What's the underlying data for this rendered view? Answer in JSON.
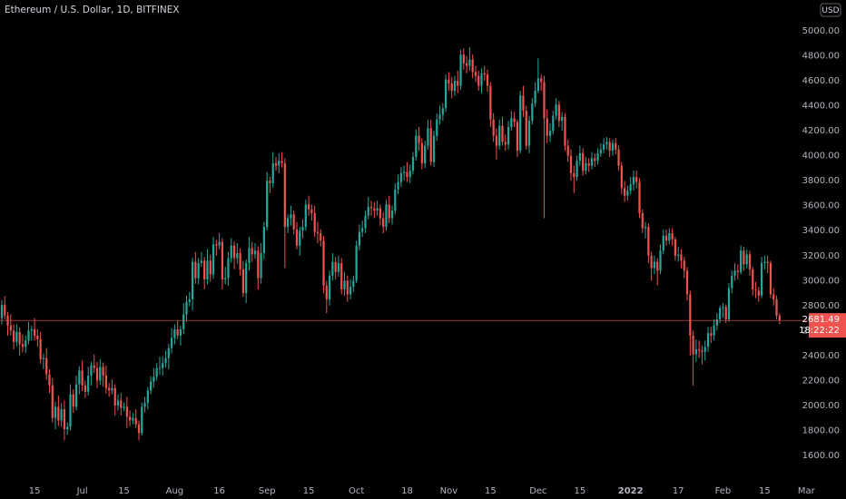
{
  "chart_data": {
    "type": "candlestick",
    "title": "Ethereum / U.S. Dollar, 1D, BITFINEX",
    "currency": "USD",
    "up_color": "#26a69a",
    "down_color": "#ef5350",
    "last_price": 2681.49,
    "countdown": "18:22:22",
    "ylim": [
      1433,
      5247
    ],
    "yticks": [
      {
        "value": 1600,
        "label": "1600.00"
      },
      {
        "value": 1800,
        "label": "1800.00"
      },
      {
        "value": 2000,
        "label": "2000.00"
      },
      {
        "value": 2200,
        "label": "2200.00"
      },
      {
        "value": 2400,
        "label": "2400.00"
      },
      {
        "value": 2600,
        "label": "2600.00"
      },
      {
        "value": 2800,
        "label": "2800.00"
      },
      {
        "value": 3000,
        "label": "3000.00"
      },
      {
        "value": 3200,
        "label": "3200.00"
      },
      {
        "value": 3400,
        "label": "3400.00"
      },
      {
        "value": 3600,
        "label": "3600.00"
      },
      {
        "value": 3800,
        "label": "3800.00"
      },
      {
        "value": 4000,
        "label": "4000.00"
      },
      {
        "value": 4200,
        "label": "4200.00"
      },
      {
        "value": 4400,
        "label": "4400.00"
      },
      {
        "value": 4600,
        "label": "4600.00"
      },
      {
        "value": 4800,
        "label": "4800.00"
      },
      {
        "value": 5000,
        "label": "5000.00"
      }
    ],
    "xlim": [
      -0.6,
      270.5
    ],
    "xticks": [
      {
        "value": 11,
        "label": "15"
      },
      {
        "value": 27,
        "label": "Jul"
      },
      {
        "value": 41,
        "label": "15"
      },
      {
        "value": 58,
        "label": "Aug"
      },
      {
        "value": 73,
        "label": "16"
      },
      {
        "value": 89,
        "label": "Sep"
      },
      {
        "value": 103,
        "label": "15"
      },
      {
        "value": 119,
        "label": "Oct"
      },
      {
        "value": 136,
        "label": "18"
      },
      {
        "value": 150,
        "label": "Nov"
      },
      {
        "value": 164,
        "label": "15"
      },
      {
        "value": 180,
        "label": "Dec"
      },
      {
        "value": 194,
        "label": "15"
      },
      {
        "value": 211,
        "label": "2022"
      },
      {
        "value": 227,
        "label": "17"
      },
      {
        "value": 242,
        "label": "Feb"
      },
      {
        "value": 256,
        "label": "15"
      },
      {
        "value": 270,
        "label": "Mar"
      }
    ],
    "open": [
      2700,
      2805,
      2720,
      2640,
      2600,
      2510,
      2590,
      2490,
      2470,
      2520,
      2600,
      2610,
      2560,
      2530,
      2370,
      2380,
      2250,
      2160,
      1900,
      1990,
      1880,
      1970,
      1810,
      1830,
      2090,
      1990,
      2170,
      2280,
      2160,
      2110,
      2240,
      2320,
      2300,
      2200,
      2310,
      2240,
      2140,
      2120,
      2140,
      2000,
      2040,
      1980,
      1990,
      1910,
      1880,
      1900,
      1850,
      1780,
      1990,
      2020,
      2120,
      2190,
      2230,
      2300,
      2300,
      2340,
      2380,
      2460,
      2540,
      2610,
      2560,
      2610,
      2730,
      2830,
      2850,
      3150,
      3020,
      3140,
      3160,
      3010,
      3160,
      3050,
      3290,
      3280,
      3310,
      3010,
      3020,
      3180,
      3280,
      3180,
      3220,
      3090,
      2900,
      3140,
      3260,
      3210,
      3240,
      3020,
      3220,
      3430,
      3800,
      3780,
      3940,
      3920,
      3960,
      3940,
      3430,
      3500,
      3530,
      3410,
      3280,
      3400,
      3430,
      3610,
      3570,
      3540,
      3390,
      3380,
      3320,
      2960,
      2850,
      3040,
      3150,
      3070,
      3140,
      2930,
      3000,
      2890,
      2950,
      3000,
      3280,
      3390,
      3420,
      3520,
      3590,
      3580,
      3560,
      3580,
      3500,
      3430,
      3610,
      3500,
      3560,
      3730,
      3790,
      3860,
      3870,
      3830,
      3880,
      3990,
      4160,
      4100,
      3940,
      4080,
      4220,
      3950,
      4160,
      4290,
      4330,
      4380,
      4610,
      4580,
      4520,
      4600,
      4560,
      4810,
      4740,
      4720,
      4770,
      4670,
      4640,
      4560,
      4660,
      4650,
      4560,
      4290,
      4160,
      4080,
      4240,
      4110,
      4090,
      4230,
      4300,
      4270,
      4040,
      4480,
      4360,
      4080,
      4280,
      4420,
      4520,
      4620,
      4590,
      4300,
      4160,
      4200,
      4320,
      4410,
      4280,
      4310,
      4080,
      4000,
      3860,
      3830,
      3960,
      4020,
      3880,
      3940,
      3920,
      3980,
      3960,
      4020,
      4050,
      4090,
      4110,
      4040,
      4100,
      4050,
      3920,
      3740,
      3680,
      3720,
      3770,
      3830,
      3790,
      3540,
      3420,
      3430,
      3200,
      3100,
      3150,
      3080,
      3240,
      3360,
      3320,
      3380,
      3330,
      3200,
      3210,
      3160,
      3080,
      2890,
      2560,
      2410,
      2450,
      2440,
      2430,
      2470,
      2580,
      2560,
      2640,
      2690,
      2780,
      2790,
      2690,
      2940,
      3040,
      3080,
      3070,
      3240,
      3130,
      3210,
      3090,
      2930,
      2920,
      2880,
      3140,
      3150,
      3140,
      2890,
      2850,
      2720
    ],
    "high": [
      2845,
      2875,
      2750,
      2730,
      2650,
      2650,
      2625,
      2570,
      2560,
      2670,
      2640,
      2700,
      2610,
      2590,
      2415,
      2460,
      2290,
      2220,
      2030,
      2080,
      2020,
      2040,
      1865,
      2170,
      2130,
      2240,
      2315,
      2360,
      2200,
      2310,
      2350,
      2410,
      2350,
      2370,
      2345,
      2320,
      2180,
      2210,
      2170,
      2090,
      2100,
      2025,
      2070,
      1960,
      1940,
      1970,
      1880,
      2025,
      2070,
      2150,
      2235,
      2300,
      2340,
      2390,
      2395,
      2440,
      2495,
      2620,
      2650,
      2680,
      2640,
      2820,
      2880,
      2910,
      3185,
      3230,
      3180,
      3230,
      3190,
      3250,
      3210,
      3350,
      3325,
      3380,
      3340,
      3110,
      3230,
      3340,
      3315,
      3300,
      3260,
      3160,
      3170,
      3350,
      3310,
      3300,
      3275,
      3300,
      3470,
      3870,
      3830,
      4030,
      3990,
      4020,
      4030,
      3980,
      3530,
      3600,
      3560,
      3470,
      3430,
      3490,
      3650,
      3680,
      3610,
      3600,
      3470,
      3410,
      3360,
      3000,
      3080,
      3220,
      3190,
      3200,
      3180,
      3070,
      3040,
      3010,
      3040,
      3320,
      3450,
      3480,
      3560,
      3670,
      3640,
      3630,
      3640,
      3610,
      3550,
      3650,
      3680,
      3600,
      3780,
      3850,
      3910,
      3920,
      3950,
      3930,
      4030,
      4210,
      4230,
      4140,
      4120,
      4290,
      4290,
      4200,
      4340,
      4400,
      4420,
      4650,
      4670,
      4630,
      4640,
      4680,
      4850,
      4860,
      4800,
      4870,
      4810,
      4720,
      4680,
      4700,
      4720,
      4690,
      4590,
      4340,
      4220,
      4290,
      4310,
      4170,
      4280,
      4360,
      4350,
      4290,
      4520,
      4560,
      4400,
      4320,
      4460,
      4590,
      4780,
      4650,
      4640,
      4370,
      4260,
      4360,
      4460,
      4440,
      4350,
      4340,
      4130,
      4050,
      3920,
      4000,
      4080,
      4060,
      3990,
      3980,
      4030,
      4020,
      4060,
      4100,
      4140,
      4150,
      4140,
      4130,
      4140,
      4080,
      3950,
      3800,
      3760,
      3830,
      3880,
      3880,
      3820,
      3570,
      3470,
      3460,
      3230,
      3200,
      3180,
      3290,
      3410,
      3410,
      3420,
      3420,
      3350,
      3270,
      3250,
      3190,
      3110,
      2920,
      2600,
      2530,
      2520,
      2480,
      2520,
      2630,
      2630,
      2690,
      2740,
      2800,
      2820,
      2810,
      2980,
      3080,
      3140,
      3130,
      3280,
      3270,
      3250,
      3240,
      3110,
      2990,
      2950,
      3190,
      3200,
      3200,
      3160,
      2940,
      2880,
      2740
    ],
    "low": [
      2650,
      2690,
      2560,
      2560,
      2450,
      2475,
      2400,
      2425,
      2420,
      2490,
      2520,
      2520,
      2470,
      2335,
      2290,
      2205,
      2100,
      1865,
      1810,
      1835,
      1830,
      1720,
      1765,
      1800,
      1940,
      1960,
      2090,
      2115,
      2060,
      2080,
      2160,
      2260,
      2140,
      2165,
      2150,
      2095,
      2070,
      2090,
      1920,
      1960,
      1920,
      1955,
      1820,
      1835,
      1850,
      1820,
      1720,
      1760,
      1945,
      1970,
      2090,
      2145,
      2200,
      2245,
      2240,
      2305,
      2290,
      2415,
      2490,
      2530,
      2480,
      2570,
      2670,
      2795,
      2760,
      2975,
      2970,
      3110,
      2930,
      2970,
      2990,
      3015,
      3200,
      3250,
      2930,
      2970,
      2960,
      3145,
      3090,
      3135,
      3040,
      2870,
      2820,
      3080,
      3150,
      3175,
      2930,
      2975,
      3170,
      3400,
      3700,
      3745,
      3880,
      3860,
      3905,
      3100,
      3380,
      3440,
      3370,
      3250,
      3200,
      3340,
      3400,
      3520,
      3480,
      3350,
      3300,
      3275,
      2900,
      2740,
      2800,
      3000,
      3010,
      3030,
      2890,
      2880,
      2830,
      2850,
      2910,
      2980,
      3240,
      3350,
      3380,
      3490,
      3520,
      3500,
      3520,
      3440,
      3380,
      3400,
      3460,
      3450,
      3530,
      3690,
      3750,
      3800,
      3790,
      3780,
      3850,
      3960,
      4040,
      3890,
      3900,
      4050,
      3920,
      3910,
      4120,
      4250,
      4280,
      4350,
      4520,
      4460,
      4480,
      4500,
      4530,
      4690,
      4660,
      4680,
      4620,
      4590,
      4520,
      4500,
      4600,
      4510,
      4230,
      4110,
      3970,
      4050,
      4080,
      4040,
      4050,
      4200,
      4230,
      3990,
      4020,
      4310,
      4050,
      4020,
      4250,
      4390,
      4500,
      4520,
      3500,
      4100,
      4110,
      4170,
      4290,
      4230,
      4200,
      4040,
      3950,
      3800,
      3700,
      3800,
      3920,
      3840,
      3850,
      3870,
      3890,
      3910,
      3930,
      3990,
      4020,
      4050,
      3990,
      4000,
      4010,
      3880,
      3690,
      3630,
      3640,
      3690,
      3720,
      3740,
      3500,
      3380,
      3340,
      3140,
      3000,
      3050,
      2960,
      3050,
      3210,
      3280,
      3290,
      3280,
      3160,
      3150,
      3100,
      3020,
      2840,
      2400,
      2160,
      2350,
      2380,
      2330,
      2360,
      2430,
      2500,
      2520,
      2600,
      2660,
      2700,
      2660,
      2670,
      2900,
      3000,
      3010,
      3050,
      3080,
      3100,
      3040,
      2880,
      2860,
      2830,
      2860,
      3090,
      3060,
      2860,
      2800,
      2690,
      2650
    ],
    "close": [
      2805,
      2720,
      2640,
      2600,
      2510,
      2590,
      2490,
      2470,
      2520,
      2600,
      2610,
      2560,
      2530,
      2370,
      2380,
      2250,
      2160,
      1900,
      1990,
      1880,
      1970,
      1810,
      1830,
      2090,
      1990,
      2170,
      2280,
      2160,
      2110,
      2240,
      2320,
      2300,
      2200,
      2310,
      2240,
      2140,
      2120,
      2140,
      2000,
      2040,
      1980,
      1990,
      1910,
      1880,
      1900,
      1850,
      1780,
      1990,
      2020,
      2120,
      2190,
      2230,
      2300,
      2300,
      2340,
      2380,
      2460,
      2540,
      2610,
      2560,
      2610,
      2730,
      2830,
      2850,
      3150,
      3020,
      3140,
      3160,
      3010,
      3160,
      3050,
      3290,
      3280,
      3310,
      3010,
      3020,
      3180,
      3280,
      3180,
      3220,
      3090,
      2900,
      3140,
      3260,
      3210,
      3240,
      3020,
      3220,
      3430,
      3800,
      3780,
      3940,
      3920,
      3960,
      3940,
      3430,
      3500,
      3530,
      3410,
      3280,
      3400,
      3430,
      3610,
      3570,
      3540,
      3390,
      3380,
      3320,
      2960,
      2850,
      3040,
      3150,
      3070,
      3140,
      2930,
      3000,
      2890,
      2950,
      3000,
      3280,
      3390,
      3420,
      3520,
      3590,
      3580,
      3560,
      3580,
      3500,
      3430,
      3610,
      3500,
      3560,
      3730,
      3790,
      3860,
      3870,
      3830,
      3880,
      3990,
      4160,
      4100,
      3940,
      4080,
      4220,
      3950,
      4160,
      4290,
      4330,
      4380,
      4610,
      4580,
      4520,
      4600,
      4560,
      4810,
      4740,
      4720,
      4770,
      4670,
      4640,
      4560,
      4660,
      4650,
      4560,
      4290,
      4160,
      4080,
      4240,
      4110,
      4090,
      4230,
      4300,
      4270,
      4040,
      4480,
      4360,
      4080,
      4280,
      4420,
      4520,
      4620,
      4590,
      4300,
      4160,
      4200,
      4320,
      4410,
      4280,
      4310,
      4080,
      4000,
      3860,
      3830,
      3960,
      4020,
      3880,
      3940,
      3920,
      3980,
      3960,
      4020,
      4050,
      4090,
      4110,
      4040,
      4100,
      4050,
      3920,
      3740,
      3680,
      3720,
      3770,
      3830,
      3790,
      3540,
      3420,
      3430,
      3200,
      3100,
      3150,
      3080,
      3240,
      3360,
      3320,
      3380,
      3330,
      3200,
      3210,
      3160,
      3080,
      2890,
      2560,
      2410,
      2450,
      2440,
      2430,
      2470,
      2580,
      2560,
      2640,
      2690,
      2780,
      2790,
      2690,
      2940,
      3040,
      3080,
      3070,
      3240,
      3130,
      3210,
      3090,
      2930,
      2920,
      2880,
      3140,
      3150,
      3140,
      2890,
      2850,
      2720,
      2681.49
    ]
  }
}
